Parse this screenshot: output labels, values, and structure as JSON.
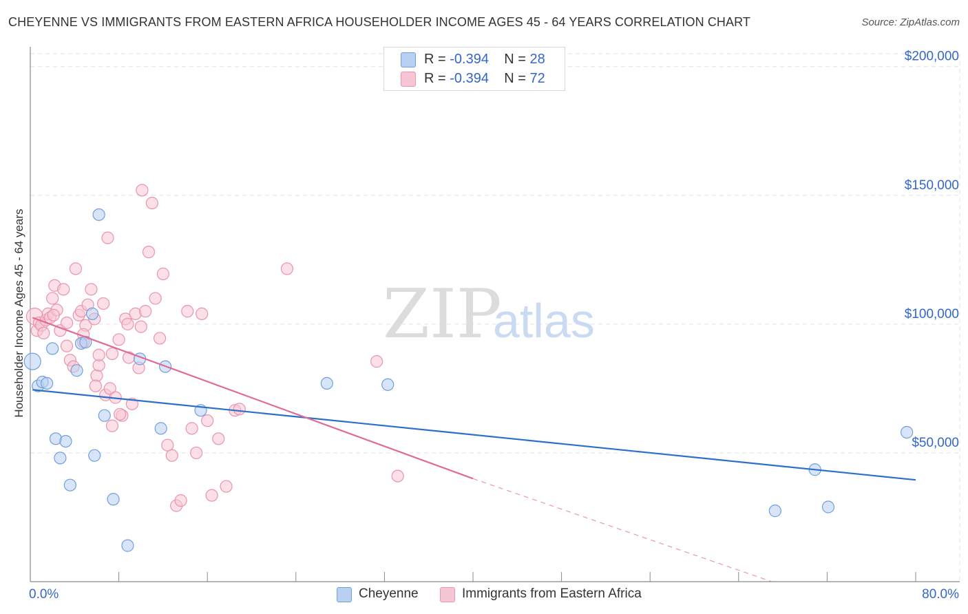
{
  "title": "CHEYENNE VS IMMIGRANTS FROM EASTERN AFRICA HOUSEHOLDER INCOME AGES 45 - 64 YEARS CORRELATION CHART",
  "source": "Source: ZipAtlas.com",
  "watermark": {
    "zip": "ZIP",
    "atlas": "atlas"
  },
  "colors": {
    "blue_fill": "#b8d0f2",
    "blue_stroke": "#6f9fde",
    "blue_line": "#2b6fcc",
    "pink_fill": "#f7c6d4",
    "pink_stroke": "#ea93ad",
    "pink_line": "#e06a96",
    "axis_value": "#3366cc",
    "grid": "#e3e3e3"
  },
  "legend_top": {
    "rows": [
      {
        "r_label": "R =",
        "r_value": "-0.394",
        "n_label": "N =",
        "n_value": "28"
      },
      {
        "r_label": "R =",
        "r_value": "-0.394",
        "n_label": "N =",
        "n_value": "72"
      }
    ]
  },
  "legend_bottom": {
    "items": [
      "Cheyenne",
      "Immigrants from Eastern Africa"
    ]
  },
  "chart_data": {
    "type": "scatter",
    "title": "CHEYENNE VS IMMIGRANTS FROM EASTERN AFRICA HOUSEHOLDER INCOME AGES 45 - 64 YEARS CORRELATION CHART",
    "xlabel": "",
    "ylabel": "Householder Income Ages 45 - 64 years",
    "xlim": [
      0,
      80
    ],
    "ylim": [
      0,
      205000
    ],
    "x_tick_labels": [
      {
        "value": 0,
        "label": "0.0%"
      },
      {
        "value": 80,
        "label": "80.0%"
      }
    ],
    "y_ticks": [
      {
        "value": 50000,
        "label": "$50,000"
      },
      {
        "value": 100000,
        "label": "$100,000"
      },
      {
        "value": 150000,
        "label": "$150,000"
      },
      {
        "value": 200000,
        "label": "$200,000"
      }
    ],
    "x_minor_ticks": [
      0,
      8,
      16,
      24,
      32,
      40,
      48,
      56,
      64,
      72,
      80
    ],
    "grid": true,
    "legend_position": "top-center",
    "series": [
      {
        "name": "Cheyenne",
        "r": -0.394,
        "n": 28,
        "trend": {
          "x0": 0.2,
          "y0": 74500,
          "x1": 80,
          "y1": 39500
        },
        "points": [
          [
            0.2,
            85500
          ],
          [
            0.7,
            76000
          ],
          [
            1.1,
            77500
          ],
          [
            1.5,
            77000
          ],
          [
            2.0,
            90500
          ],
          [
            2.3,
            55500
          ],
          [
            2.7,
            48000
          ],
          [
            3.2,
            54500
          ],
          [
            3.6,
            37500
          ],
          [
            4.2,
            82000
          ],
          [
            4.6,
            92500
          ],
          [
            5.0,
            93000
          ],
          [
            5.6,
            104000
          ],
          [
            5.8,
            49000
          ],
          [
            6.2,
            142500
          ],
          [
            6.7,
            64500
          ],
          [
            7.5,
            32000
          ],
          [
            8.8,
            14000
          ],
          [
            9.9,
            86500
          ],
          [
            11.8,
            59500
          ],
          [
            12.2,
            83500
          ],
          [
            15.4,
            66500
          ],
          [
            26.8,
            77000
          ],
          [
            32.3,
            76500
          ],
          [
            67.3,
            27500
          ],
          [
            70.9,
            43500
          ],
          [
            72.1,
            29000
          ],
          [
            79.2,
            58000
          ]
        ]
      },
      {
        "name": "Immigrants from Eastern Africa",
        "r": -0.394,
        "n": 72,
        "trend": {
          "x0": 0.2,
          "y0": 102500,
          "x1": 40,
          "y1": 40000
        },
        "trend_dashed": {
          "x0": 40,
          "y0": 40000,
          "x1": 67,
          "y1": 0
        },
        "points": [
          [
            0.4,
            103000
          ],
          [
            0.6,
            97500
          ],
          [
            0.8,
            100500
          ],
          [
            1.0,
            99500
          ],
          [
            1.2,
            96500
          ],
          [
            1.4,
            101500
          ],
          [
            1.6,
            104000
          ],
          [
            1.8,
            102500
          ],
          [
            2.0,
            110000
          ],
          [
            2.2,
            115000
          ],
          [
            2.4,
            105500
          ],
          [
            2.7,
            97500
          ],
          [
            3.0,
            113500
          ],
          [
            3.3,
            91500
          ],
          [
            3.6,
            86000
          ],
          [
            3.9,
            83500
          ],
          [
            4.1,
            121500
          ],
          [
            4.4,
            103500
          ],
          [
            4.6,
            105000
          ],
          [
            4.8,
            93000
          ],
          [
            5.0,
            99500
          ],
          [
            5.2,
            107500
          ],
          [
            5.5,
            113500
          ],
          [
            5.8,
            102000
          ],
          [
            6.0,
            80000
          ],
          [
            6.2,
            84000
          ],
          [
            6.6,
            108000
          ],
          [
            6.8,
            72500
          ],
          [
            7.0,
            133500
          ],
          [
            7.2,
            75000
          ],
          [
            7.4,
            88500
          ],
          [
            7.7,
            71500
          ],
          [
            8.0,
            94000
          ],
          [
            8.3,
            64500
          ],
          [
            8.6,
            102000
          ],
          [
            8.9,
            87000
          ],
          [
            9.2,
            69000
          ],
          [
            9.5,
            104000
          ],
          [
            9.8,
            83000
          ],
          [
            10.1,
            152000
          ],
          [
            10.4,
            105000
          ],
          [
            10.7,
            128000
          ],
          [
            11.0,
            147000
          ],
          [
            11.3,
            110000
          ],
          [
            11.7,
            94500
          ],
          [
            12.0,
            119500
          ],
          [
            12.4,
            53000
          ],
          [
            12.8,
            49000
          ],
          [
            13.2,
            29500
          ],
          [
            13.6,
            31500
          ],
          [
            14.2,
            105000
          ],
          [
            14.6,
            59500
          ],
          [
            15.0,
            50000
          ],
          [
            15.5,
            104000
          ],
          [
            16.0,
            62500
          ],
          [
            16.4,
            33500
          ],
          [
            17.0,
            55500
          ],
          [
            17.7,
            37000
          ],
          [
            18.5,
            66500
          ],
          [
            18.9,
            67000
          ],
          [
            23.2,
            121500
          ],
          [
            3.3,
            100500
          ],
          [
            4.8,
            96000
          ],
          [
            6.2,
            88000
          ],
          [
            7.4,
            60500
          ],
          [
            8.8,
            100000
          ],
          [
            10.0,
            99000
          ],
          [
            31.3,
            85500
          ],
          [
            33.2,
            41000
          ],
          [
            2.1,
            103500
          ],
          [
            5.9,
            76000
          ],
          [
            8.1,
            65000
          ]
        ]
      }
    ]
  }
}
